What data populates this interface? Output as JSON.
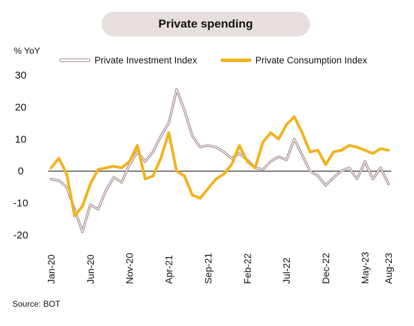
{
  "chart_data": {
    "type": "line",
    "title": "Private spending",
    "ylabel": "% YoY",
    "source": "Source: BOT",
    "ylim": [
      -20,
      30
    ],
    "yticks": [
      "30",
      "20",
      "10",
      "0",
      "-10",
      "-20"
    ],
    "ytick_values": [
      30,
      20,
      10,
      0,
      -10,
      -20
    ],
    "x": [
      "Jan-20",
      "Feb-20",
      "Mar-20",
      "Apr-20",
      "May-20",
      "Jun-20",
      "Jul-20",
      "Aug-20",
      "Sep-20",
      "Oct-20",
      "Nov-20",
      "Dec-20",
      "Jan-21",
      "Feb-21",
      "Mar-21",
      "Apr-21",
      "May-21",
      "Jun-21",
      "Jul-21",
      "Aug-21",
      "Sep-21",
      "Oct-21",
      "Nov-21",
      "Dec-21",
      "Jan-22",
      "Feb-22",
      "Mar-22",
      "Apr-22",
      "May-22",
      "Jun-22",
      "Jul-22",
      "Aug-22",
      "Sep-22",
      "Oct-22",
      "Nov-22",
      "Dec-22",
      "Jan-23",
      "Feb-23",
      "Mar-23",
      "Apr-23",
      "May-23",
      "Jun-23",
      "Jul-23",
      "Aug-23"
    ],
    "xtick_labels": [
      "Jan-20",
      "Jun-20",
      "Nov-20",
      "Apr-21",
      "Sep-21",
      "Feb-22",
      "Jul-22",
      "Dec-22",
      "May-23",
      "Aug-23"
    ],
    "xtick_indices": [
      0,
      5,
      10,
      15,
      20,
      25,
      30,
      35,
      40,
      43
    ],
    "series": [
      {
        "name": "Private Investment Index",
        "color": "#a58b8b",
        "style": "double-line",
        "values": [
          -2.5,
          -3,
          -5,
          -12,
          -19,
          -10.5,
          -12,
          -6,
          -2,
          -3.5,
          2,
          6,
          3,
          6,
          11,
          15,
          25.5,
          19,
          11,
          7.5,
          8,
          7.5,
          6,
          4,
          5.5,
          3.5,
          1,
          0.5,
          3,
          4.5,
          3.5,
          10,
          5,
          0,
          -1.5,
          -4.5,
          -2,
          0,
          1,
          -2.5,
          3,
          -2.5,
          1,
          -4
        ]
      },
      {
        "name": "Private Consumption Index",
        "color": "#f2b21c",
        "style": "thick",
        "values": [
          1,
          4,
          -1,
          -14,
          -11,
          -4,
          0.5,
          1,
          1.5,
          1,
          3,
          8,
          -2.5,
          -1.5,
          4,
          12,
          0,
          -1.5,
          -7.5,
          -8.5,
          -5.5,
          -2.5,
          -1,
          2,
          8,
          3,
          1,
          9,
          12,
          10,
          14.5,
          17,
          12,
          6,
          6.5,
          2,
          6,
          6.5,
          8,
          7.5,
          6.5,
          5.5,
          7,
          6.5
        ]
      }
    ],
    "zero_line": true,
    "grid": false,
    "legend_position": "top"
  }
}
